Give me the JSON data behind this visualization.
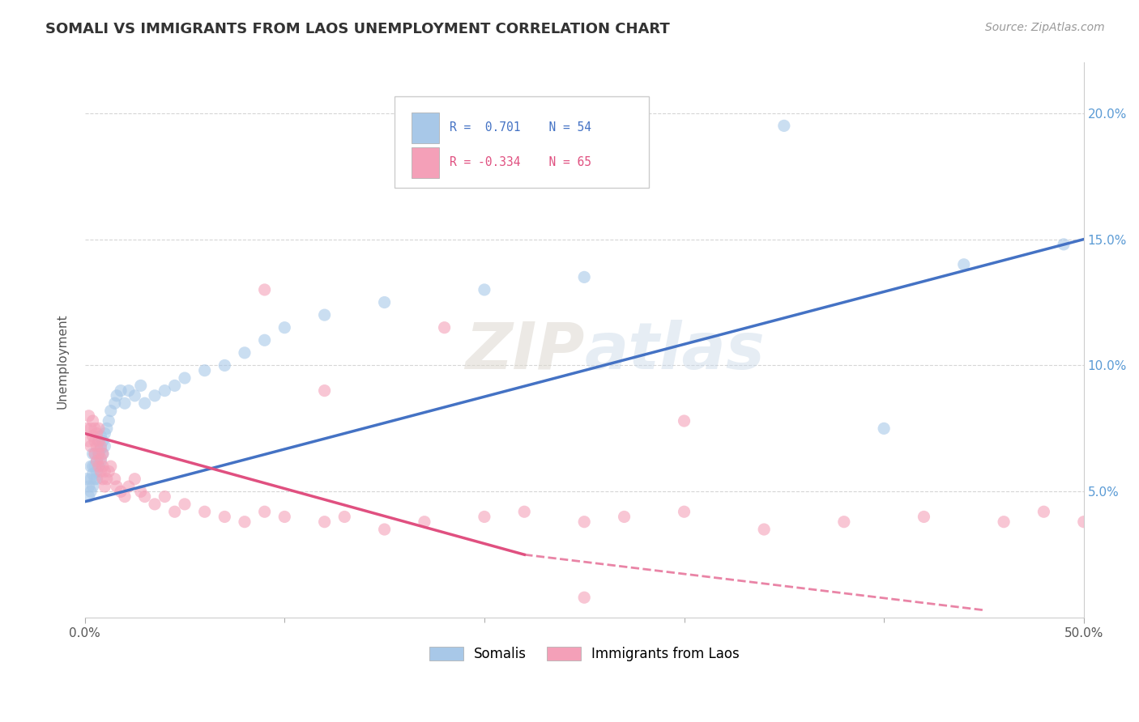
{
  "title": "SOMALI VS IMMIGRANTS FROM LAOS UNEMPLOYMENT CORRELATION CHART",
  "source": "Source: ZipAtlas.com",
  "xlim": [
    0,
    0.5
  ],
  "ylim": [
    0,
    0.22
  ],
  "legend_label1": "Somalis",
  "legend_label2": "Immigrants from Laos",
  "color_somali": "#A8C8E8",
  "color_laos": "#F4A0B8",
  "color_line_somali": "#4472C4",
  "color_line_laos": "#E05080",
  "color_ytick": "#5B9BD5",
  "watermark": "ZIPatlas",
  "somali_x": [
    0.001,
    0.002,
    0.002,
    0.003,
    0.003,
    0.003,
    0.004,
    0.004,
    0.004,
    0.004,
    0.005,
    0.005,
    0.005,
    0.006,
    0.006,
    0.006,
    0.007,
    0.007,
    0.007,
    0.008,
    0.008,
    0.008,
    0.009,
    0.009,
    0.01,
    0.01,
    0.011,
    0.012,
    0.013,
    0.015,
    0.016,
    0.018,
    0.02,
    0.022,
    0.025,
    0.028,
    0.03,
    0.035,
    0.04,
    0.045,
    0.05,
    0.06,
    0.07,
    0.08,
    0.09,
    0.1,
    0.12,
    0.15,
    0.2,
    0.25,
    0.35,
    0.4,
    0.44,
    0.49
  ],
  "somali_y": [
    0.055,
    0.048,
    0.052,
    0.05,
    0.055,
    0.06,
    0.052,
    0.057,
    0.06,
    0.065,
    0.055,
    0.06,
    0.065,
    0.055,
    0.058,
    0.062,
    0.06,
    0.065,
    0.07,
    0.062,
    0.067,
    0.072,
    0.065,
    0.07,
    0.068,
    0.073,
    0.075,
    0.078,
    0.082,
    0.085,
    0.088,
    0.09,
    0.085,
    0.09,
    0.088,
    0.092,
    0.085,
    0.088,
    0.09,
    0.092,
    0.095,
    0.098,
    0.1,
    0.105,
    0.11,
    0.115,
    0.12,
    0.125,
    0.13,
    0.135,
    0.195,
    0.075,
    0.14,
    0.148
  ],
  "laos_x": [
    0.001,
    0.002,
    0.002,
    0.003,
    0.003,
    0.004,
    0.004,
    0.005,
    0.005,
    0.005,
    0.006,
    0.006,
    0.006,
    0.007,
    0.007,
    0.007,
    0.007,
    0.008,
    0.008,
    0.008,
    0.009,
    0.009,
    0.009,
    0.01,
    0.01,
    0.011,
    0.012,
    0.013,
    0.015,
    0.016,
    0.018,
    0.02,
    0.022,
    0.025,
    0.028,
    0.03,
    0.035,
    0.04,
    0.045,
    0.05,
    0.06,
    0.07,
    0.08,
    0.09,
    0.1,
    0.12,
    0.13,
    0.15,
    0.17,
    0.2,
    0.22,
    0.25,
    0.27,
    0.3,
    0.34,
    0.38,
    0.42,
    0.46,
    0.48,
    0.5,
    0.18,
    0.09,
    0.12,
    0.25,
    0.3
  ],
  "laos_y": [
    0.075,
    0.07,
    0.08,
    0.068,
    0.075,
    0.072,
    0.078,
    0.065,
    0.07,
    0.075,
    0.062,
    0.068,
    0.073,
    0.06,
    0.065,
    0.07,
    0.075,
    0.058,
    0.063,
    0.068,
    0.055,
    0.06,
    0.065,
    0.052,
    0.058,
    0.055,
    0.058,
    0.06,
    0.055,
    0.052,
    0.05,
    0.048,
    0.052,
    0.055,
    0.05,
    0.048,
    0.045,
    0.048,
    0.042,
    0.045,
    0.042,
    0.04,
    0.038,
    0.042,
    0.04,
    0.038,
    0.04,
    0.035,
    0.038,
    0.04,
    0.042,
    0.038,
    0.04,
    0.042,
    0.035,
    0.038,
    0.04,
    0.038,
    0.042,
    0.038,
    0.115,
    0.13,
    0.09,
    0.008,
    0.078
  ],
  "trend_somali_x0": 0.0,
  "trend_somali_y0": 0.046,
  "trend_somali_x1": 0.5,
  "trend_somali_y1": 0.15,
  "trend_laos_solid_x0": 0.0,
  "trend_laos_solid_y0": 0.073,
  "trend_laos_solid_x1": 0.22,
  "trend_laos_solid_y1": 0.025,
  "trend_laos_dash_x0": 0.22,
  "trend_laos_dash_y0": 0.025,
  "trend_laos_dash_x1": 0.45,
  "trend_laos_dash_y1": 0.003
}
